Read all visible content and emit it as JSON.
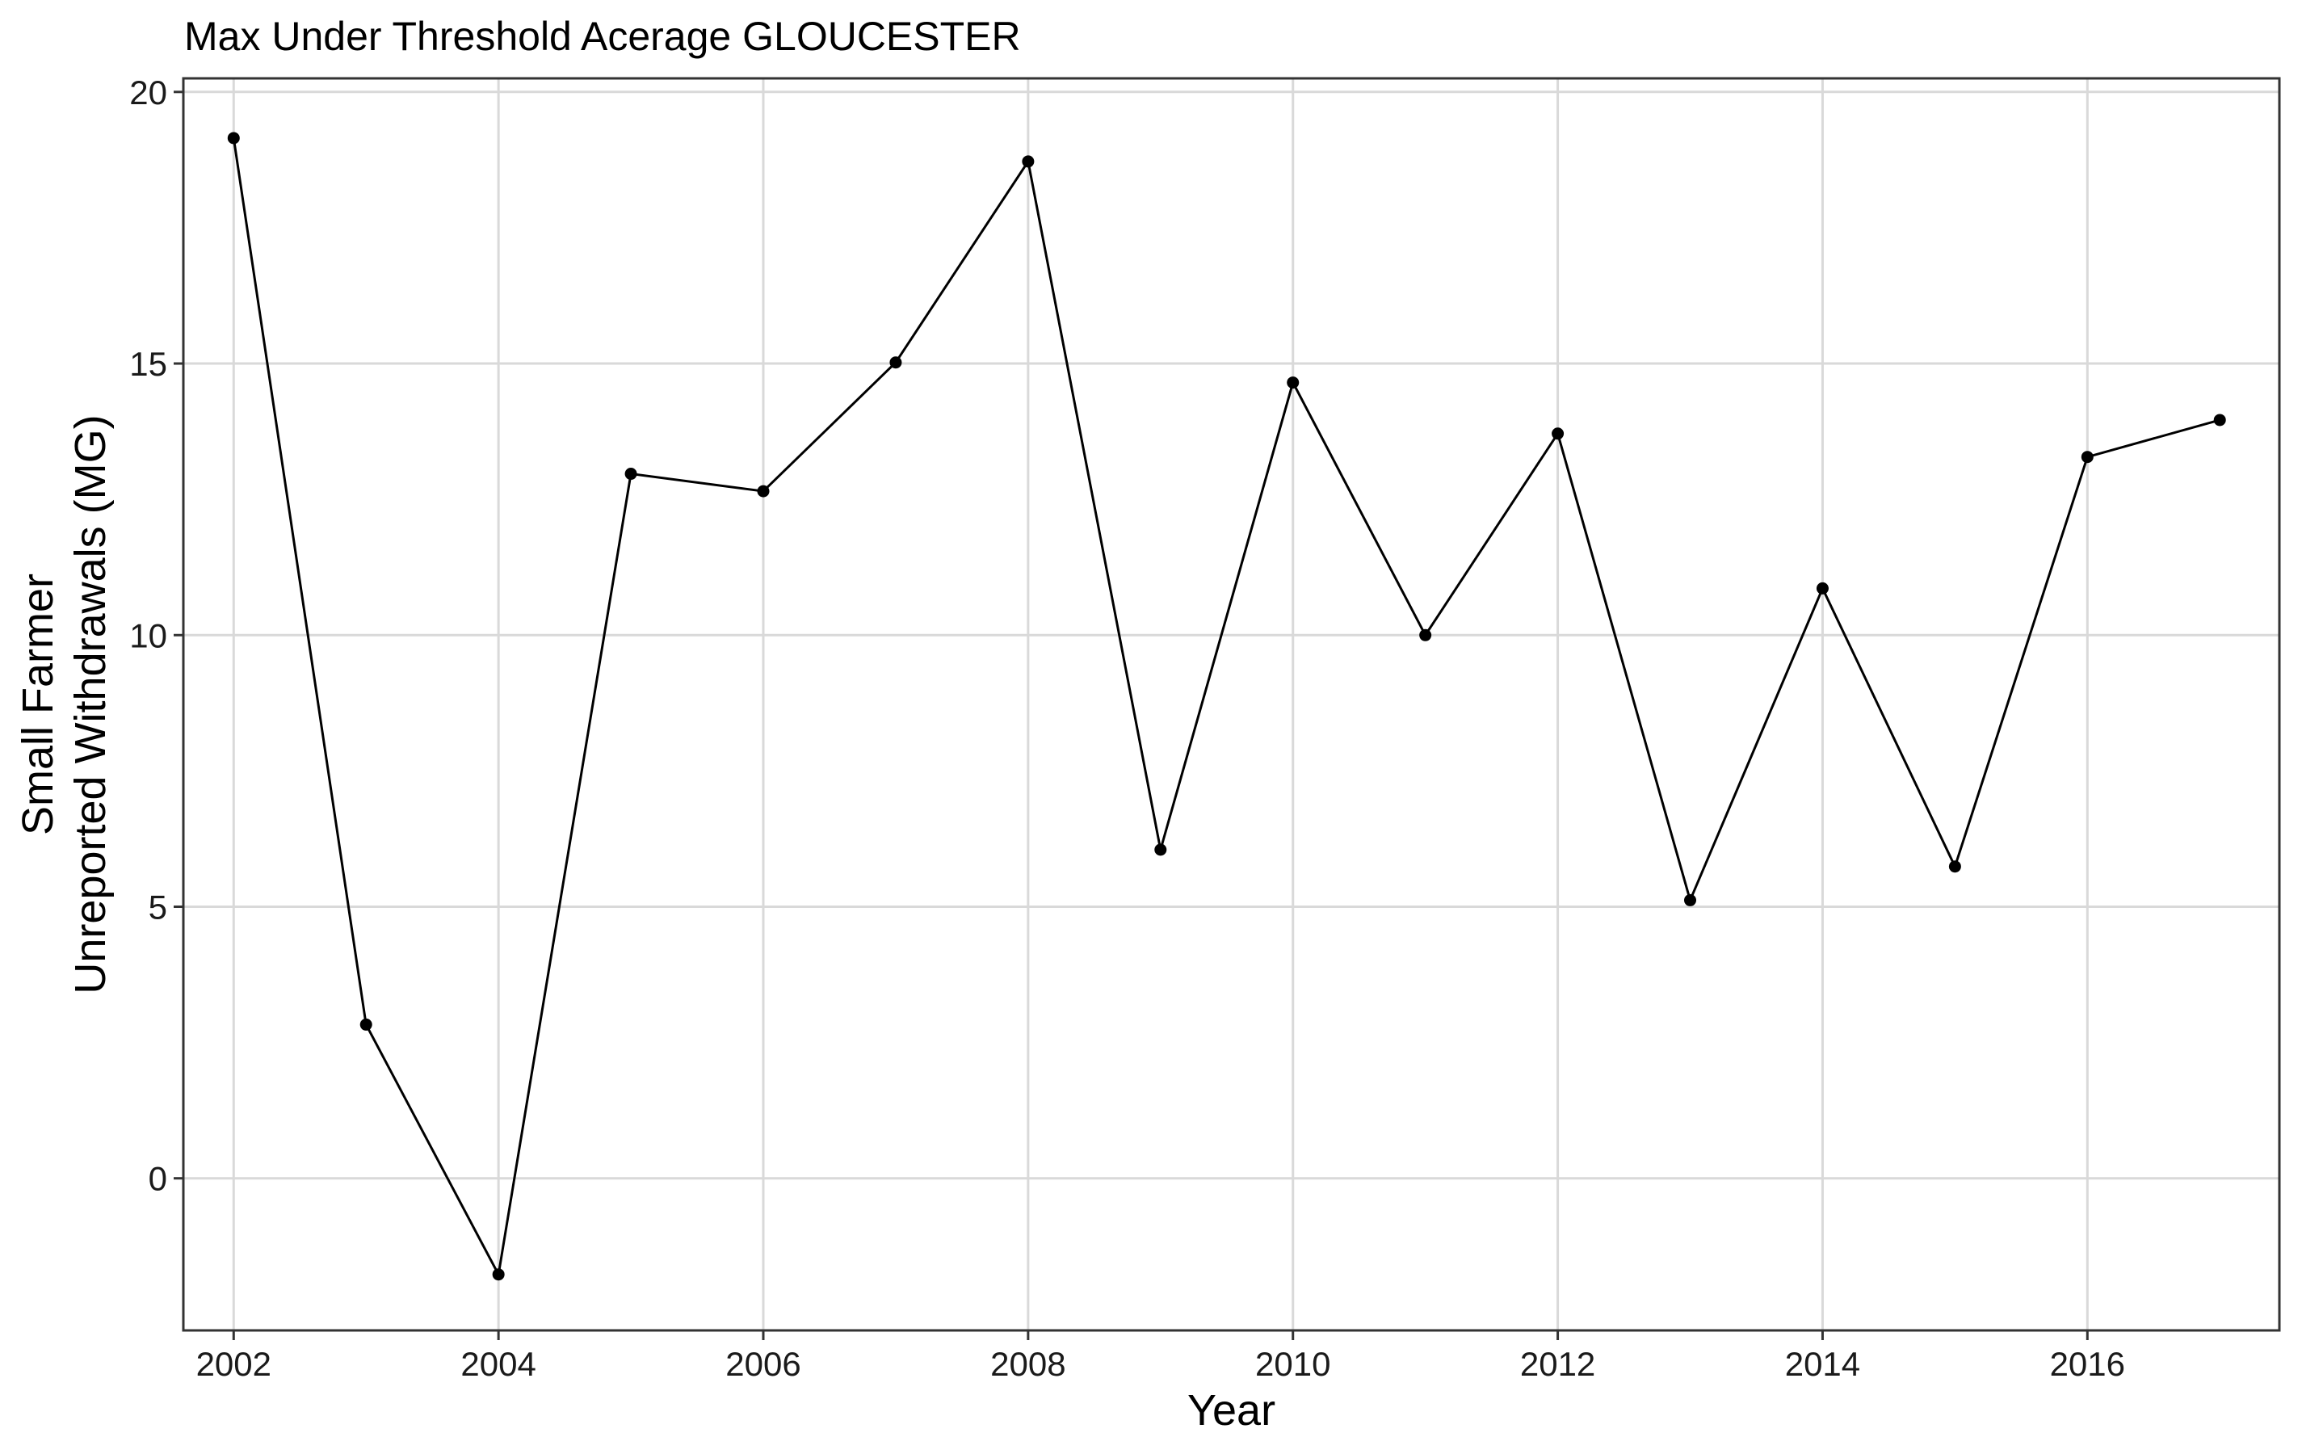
{
  "chart_data": {
    "type": "line",
    "title": "Max Under Threshold Acerage GLOUCESTER",
    "xlabel": "Year",
    "ylabel": [
      "Small Farmer",
      "Unreported Withdrawals (MG)"
    ],
    "xlim": [
      2001.62,
      2017.45
    ],
    "ylim": [
      -2.8,
      20.25
    ],
    "xticks": [
      2002,
      2004,
      2006,
      2008,
      2010,
      2012,
      2014,
      2016
    ],
    "yticks": [
      0,
      5,
      10,
      15,
      20
    ],
    "grid": true,
    "legend": "none",
    "colors": {
      "line": "#000000",
      "grid": "#d9d9d9",
      "panel_border": "#333333",
      "background": "#ffffff"
    },
    "series": [
      {
        "x": [
          2002.0,
          2003.0,
          2004.0,
          2005.0,
          2006.0,
          2007.0,
          2008.0,
          2009.0,
          2010.0,
          2011.0,
          2012.0,
          2013.0,
          2014.0,
          2015.0,
          2016.0,
          2017.0
        ],
        "values": [
          19.15,
          2.83,
          -1.77,
          12.97,
          12.65,
          15.02,
          18.72,
          6.05,
          14.65,
          10.0,
          13.71,
          5.12,
          10.86,
          5.74,
          13.28,
          13.96
        ]
      }
    ]
  }
}
